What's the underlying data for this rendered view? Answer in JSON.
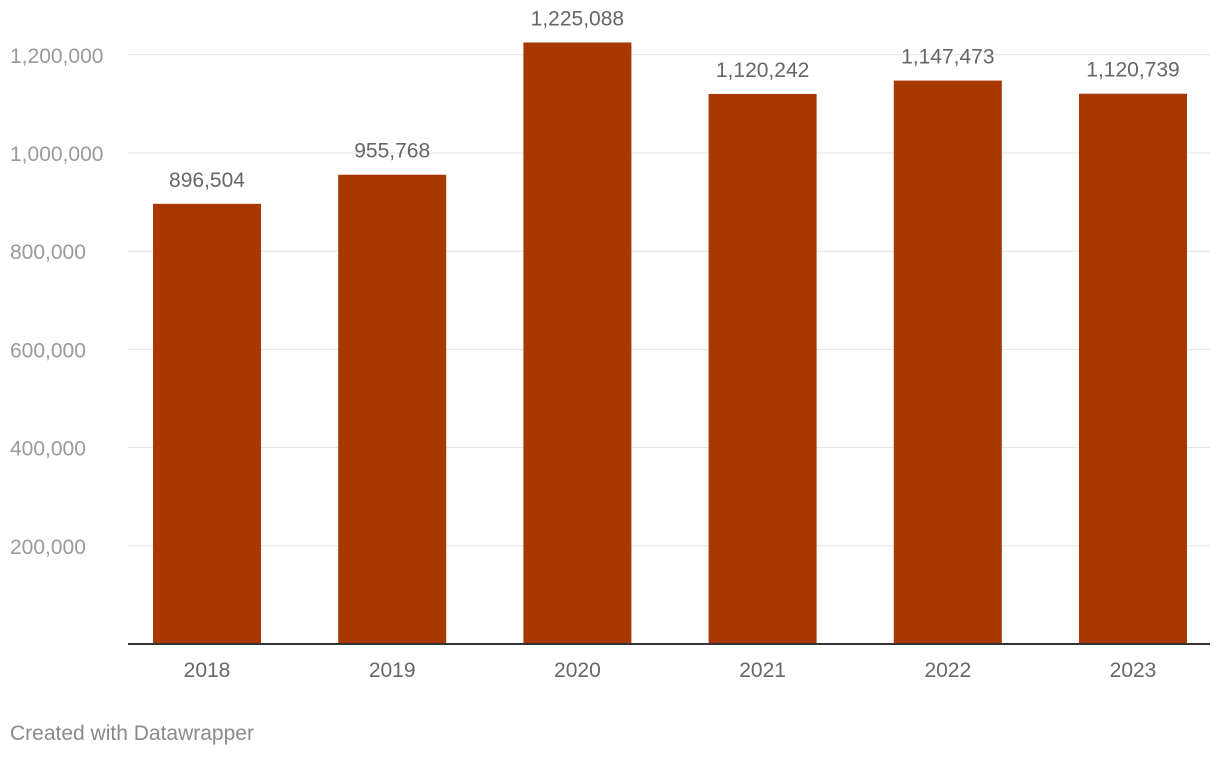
{
  "chart_data": {
    "type": "bar",
    "categories": [
      "2018",
      "2019",
      "2020",
      "2021",
      "2022",
      "2023"
    ],
    "values": [
      896504,
      955768,
      1225088,
      1120242,
      1147473,
      1120739
    ],
    "value_labels": [
      "896,504",
      "955,768",
      "1,225,088",
      "1,120,242",
      "1,147,473",
      "1,120,739"
    ],
    "yticks": [
      200000,
      400000,
      600000,
      800000,
      1000000,
      1200000
    ],
    "ytick_labels": [
      "200,000",
      "400,000",
      "600,000",
      "800,000",
      "1,000,000",
      "1,200,000"
    ],
    "ylim": [
      0,
      1250000
    ],
    "grid": true,
    "title": "",
    "xlabel": "",
    "ylabel": "",
    "bar_color": "#a83800",
    "grid_color": "#e3e3e3",
    "axis_color": "#333333",
    "tick_label_color": "#9a9a9a",
    "category_label_color": "#666666",
    "value_label_color": "#666666"
  },
  "footer": {
    "credit": "Created with Datawrapper"
  }
}
